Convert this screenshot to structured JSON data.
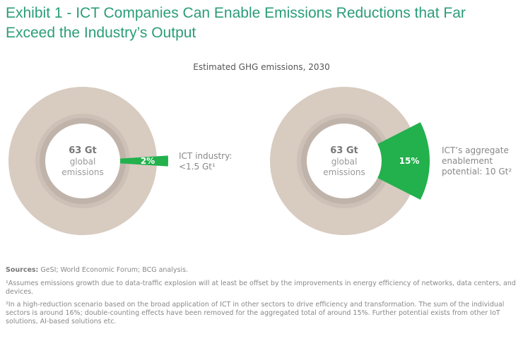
{
  "title": "Exhibit 1 - ICT Companies Can Enable Emissions Reductions that Far Exceed the Industry’s Output",
  "chart_data": [
    {
      "type": "pie",
      "subtitle": "Estimated GHG emissions, 2030",
      "center_value": "63 Gt",
      "center_label_1": "global",
      "center_label_2": "emissions",
      "highlight_share": 2,
      "highlight_label": "2%",
      "annotation_1": "ICT industry:",
      "annotation_2": "<1.5 Gt¹",
      "colors": {
        "ring": "#d8cbc0",
        "inner_ring": "#bfb3aa",
        "highlight": "#22b14c"
      }
    },
    {
      "type": "pie",
      "center_value": "63 Gt",
      "center_label_1": "global",
      "center_label_2": "emissions",
      "highlight_share": 15,
      "highlight_label": "15%",
      "annotation_1": "ICT’s aggregate",
      "annotation_2": "enablement",
      "annotation_3": "potential: 10 Gt²",
      "colors": {
        "ring": "#d8cbc0",
        "inner_ring": "#bfb3aa",
        "highlight": "#22b14c"
      }
    }
  ],
  "footer": {
    "sources_label": "Sources:",
    "sources": " GeSI; World Economic Forum; BCG analysis.",
    "note1": "¹Assumes emissions growth due to data-traffic explosion will at least be offset by the improvements in energy efficiency of networks, data centers, and devices.",
    "note2": "²In a high-reduction scenario based on the broad application of ICT in other sectors to drive efficiency and transformation. The sum of the individual sectors is around 16%; double-counting effects have been removed for the aggregated total of around 15%. Further potential exists from other IoT solutions, AI-based solutions etc."
  }
}
